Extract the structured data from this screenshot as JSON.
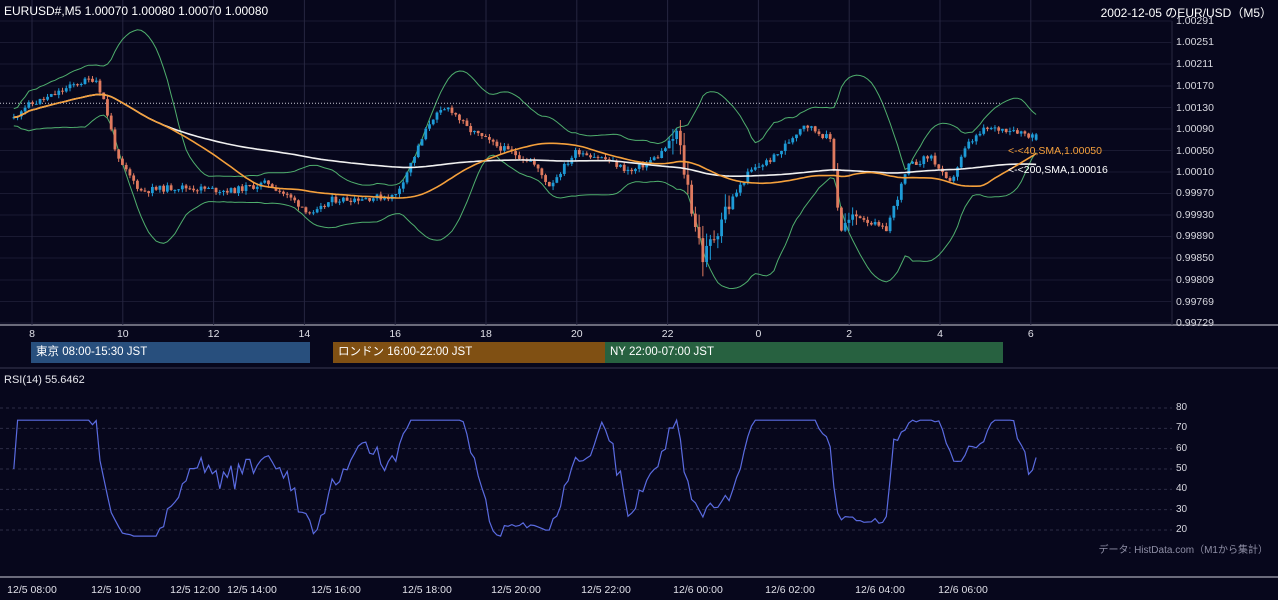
{
  "header": {
    "symbol_ohlc": "EURUSD#,M5 1.00070 1.00080 1.00070 1.00080",
    "right_title": "2002-12-05 のEUR/USD（M5）"
  },
  "price_axis": {
    "labels": [
      "1.00291",
      "1.00251",
      "1.00211",
      "1.00170",
      "1.00130",
      "1.00090",
      "1.00050",
      "1.00010",
      "0.99970",
      "0.99930",
      "0.99890",
      "0.99850",
      "0.99809",
      "0.99769",
      "0.99729"
    ]
  },
  "hour_axis": {
    "labels": [
      "8",
      "10",
      "12",
      "14",
      "16",
      "18",
      "20",
      "22",
      "0",
      "2",
      "4",
      "6"
    ]
  },
  "ma_labels": {
    "sma40": "<-<40,SMA,1.00050",
    "sma200": "<-<200,SMA,1.00016"
  },
  "sessions": [
    {
      "label": "東京 08:00-15:30 JST",
      "color": "#284f7d"
    },
    {
      "label": "ロンドン 16:00-22:00 JST",
      "color": "#805013"
    },
    {
      "label": "NY 22:00-07:00 JST",
      "color": "#276140"
    }
  ],
  "rsi": {
    "title": "RSI(14) 55.6462",
    "period": 14,
    "value": 55.6462,
    "labels": [
      "80",
      "70",
      "60",
      "50",
      "40",
      "30",
      "20"
    ]
  },
  "date_axis": {
    "labels": [
      "12/5 08:00",
      "12/5 10:00",
      "12/5 12:00",
      "12/5 14:00",
      "12/5 16:00",
      "12/5 18:00",
      "12/5 20:00",
      "12/5 22:00",
      "12/6 00:00",
      "12/6 02:00",
      "12/6 04:00",
      "12/6 06:00"
    ]
  },
  "source_note": "データ: HistData.com（M1から集計）",
  "colors": {
    "background": "#07071c",
    "bull": "#1e9bd7",
    "bear": "#e07a5f",
    "sma40": "#f5a03c",
    "sma200": "#f0f0f0",
    "bollinger": "#4fae6d",
    "rsi_line": "#5a6be0"
  },
  "chart_data": {
    "type": "line",
    "title": "2002-12-05 のEUR/USD（M5）",
    "series": [
      {
        "name": "40,SMA",
        "last_value": 1.0005
      },
      {
        "name": "200,SMA",
        "last_value": 1.00016
      }
    ],
    "ylim": [
      0.99729,
      1.00291
    ],
    "last_ohlc": {
      "open": 1.0007,
      "high": 1.0008,
      "low": 1.0007,
      "close": 1.0008
    },
    "rsi_ylim": [
      20,
      80
    ]
  }
}
